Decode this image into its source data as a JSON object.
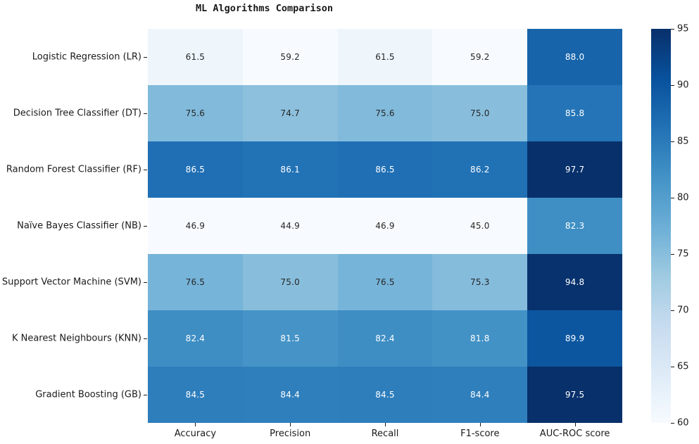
{
  "title": "ML Algorithms Comparison",
  "chart_data": {
    "type": "heatmap",
    "title": "ML Algorithms Comparison",
    "rows": [
      "Logistic Regression (LR)",
      "Decision Tree Classifier (DT)",
      "Random Forest Classifier (RF)",
      "Naïve Bayes Classifier (NB)",
      "Support Vector Machine (SVM)",
      "K Nearest Neighbours (KNN)",
      "Gradient Boosting (GB)"
    ],
    "columns": [
      "Accuracy",
      "Precision",
      "Recall",
      "F1-score",
      "AUC-ROC score"
    ],
    "values": [
      [
        61.5,
        59.2,
        61.5,
        59.2,
        88.0
      ],
      [
        75.6,
        74.7,
        75.6,
        75.0,
        85.8
      ],
      [
        86.5,
        86.1,
        86.5,
        86.2,
        97.7
      ],
      [
        46.9,
        44.9,
        46.9,
        45.0,
        82.3
      ],
      [
        76.5,
        75.0,
        76.5,
        75.3,
        94.8
      ],
      [
        82.4,
        81.5,
        82.4,
        81.8,
        89.9
      ],
      [
        84.5,
        84.4,
        84.5,
        84.4,
        97.5
      ]
    ],
    "annotated": true,
    "value_decimals": 1,
    "colormap": {
      "name": "Blues",
      "stops": [
        "#f7fbff",
        "#deebf7",
        "#c6dbef",
        "#9ecae1",
        "#6baed6",
        "#4292c6",
        "#2171b5",
        "#08519c",
        "#08306b"
      ]
    },
    "vmin": 60,
    "vmax": 95,
    "colorbar_ticks": [
      95,
      90,
      85,
      80,
      75,
      70,
      65,
      60
    ],
    "legend_position": "right-colorbar",
    "grid": false,
    "annotation_dark_text": "#262626",
    "annotation_light_text": "#ffffff"
  }
}
